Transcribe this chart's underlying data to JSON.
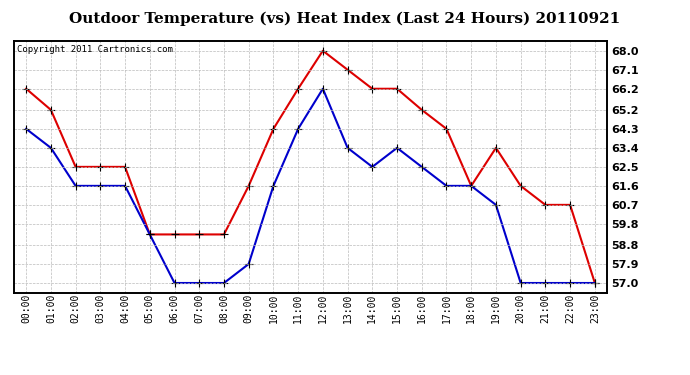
{
  "title": "Outdoor Temperature (vs) Heat Index (Last 24 Hours) 20110921",
  "copyright": "Copyright 2011 Cartronics.com",
  "hours": [
    "00:00",
    "01:00",
    "02:00",
    "03:00",
    "04:00",
    "05:00",
    "06:00",
    "07:00",
    "08:00",
    "09:00",
    "10:00",
    "11:00",
    "12:00",
    "13:00",
    "14:00",
    "15:00",
    "16:00",
    "17:00",
    "18:00",
    "19:00",
    "20:00",
    "21:00",
    "22:00",
    "23:00"
  ],
  "red_data": [
    66.2,
    65.2,
    62.5,
    62.5,
    62.5,
    59.3,
    59.3,
    59.3,
    59.3,
    61.6,
    64.3,
    66.2,
    68.0,
    67.1,
    66.2,
    66.2,
    65.2,
    64.3,
    61.6,
    63.4,
    61.6,
    60.7,
    60.7,
    57.0
  ],
  "blue_data": [
    64.3,
    63.4,
    61.6,
    61.6,
    61.6,
    59.3,
    57.0,
    57.0,
    57.0,
    57.9,
    61.6,
    64.3,
    66.2,
    63.4,
    62.5,
    63.4,
    62.5,
    61.6,
    61.6,
    60.7,
    57.0,
    57.0,
    57.0,
    57.0
  ],
  "red_color": "#dd0000",
  "blue_color": "#0000cc",
  "plot_bg_color": "#ffffff",
  "fig_bg_color": "#ffffff",
  "ylim_min": 56.55,
  "ylim_max": 68.45,
  "yticks": [
    57.0,
    57.9,
    58.8,
    59.8,
    60.7,
    61.6,
    62.5,
    63.4,
    64.3,
    65.2,
    66.2,
    67.1,
    68.0
  ],
  "title_fontsize": 11,
  "copyright_fontsize": 6.5,
  "tick_fontsize": 7,
  "ytick_fontsize": 8,
  "marker": "+",
  "marker_size": 6,
  "linewidth": 1.5,
  "grid_color": "#bbbbbb",
  "grid_style": "--",
  "grid_alpha": 1.0,
  "grid_linewidth": 0.5
}
